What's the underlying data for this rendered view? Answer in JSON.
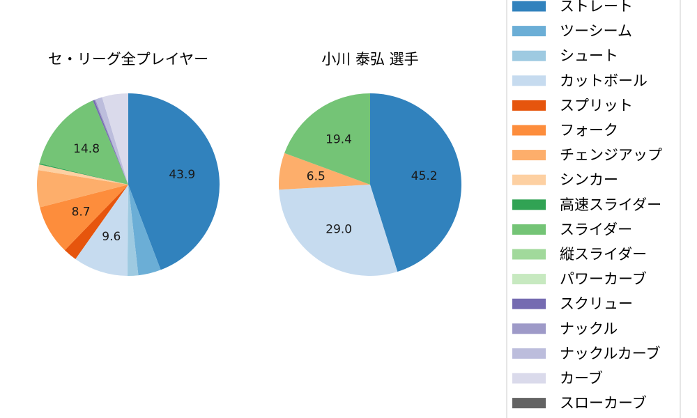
{
  "chart_data": {
    "type": "pie",
    "legend_placement": "right",
    "legend": [
      {
        "label": "ストレート",
        "color": "#3182bd"
      },
      {
        "label": "ツーシーム",
        "color": "#6baed6"
      },
      {
        "label": "シュート",
        "color": "#9ecae1"
      },
      {
        "label": "カットボール",
        "color": "#c6dbef"
      },
      {
        "label": "スプリット",
        "color": "#e6550d"
      },
      {
        "label": "フォーク",
        "color": "#fd8d3c"
      },
      {
        "label": "チェンジアップ",
        "color": "#fdae6b"
      },
      {
        "label": "シンカー",
        "color": "#fdd0a2"
      },
      {
        "label": "高速スライダー",
        "color": "#31a354"
      },
      {
        "label": "スライダー",
        "color": "#74c476"
      },
      {
        "label": "縦スライダー",
        "color": "#a1d99b"
      },
      {
        "label": "パワーカーブ",
        "color": "#c7e9c0"
      },
      {
        "label": "スクリュー",
        "color": "#756bb1"
      },
      {
        "label": "ナックル",
        "color": "#9e9ac8"
      },
      {
        "label": "ナックルカーブ",
        "color": "#bcbddc"
      },
      {
        "label": "カーブ",
        "color": "#dadaeb"
      },
      {
        "label": "スローカーブ",
        "color": "#636363"
      }
    ],
    "charts": [
      {
        "title": "セ・リーグ全プレイヤー",
        "slices": [
          {
            "label": "ストレート",
            "value": 43.9,
            "color": "#3182bd",
            "show_label": true
          },
          {
            "label": "ツーシーム",
            "value": 4.0,
            "color": "#6baed6",
            "show_label": false
          },
          {
            "label": "シュート",
            "value": 1.9,
            "color": "#9ecae1",
            "show_label": false
          },
          {
            "label": "カットボール",
            "value": 9.6,
            "color": "#c6dbef",
            "show_label": true
          },
          {
            "label": "スプリット",
            "value": 2.4,
            "color": "#e6550d",
            "show_label": false
          },
          {
            "label": "フォーク",
            "value": 8.7,
            "color": "#fd8d3c",
            "show_label": true
          },
          {
            "label": "チェンジアップ",
            "value": 6.5,
            "color": "#fdae6b",
            "show_label": false
          },
          {
            "label": "シンカー",
            "value": 1.0,
            "color": "#fdd0a2",
            "show_label": false
          },
          {
            "label": "高速スライダー",
            "value": 0.2,
            "color": "#31a354",
            "show_label": false
          },
          {
            "label": "スライダー",
            "value": 14.8,
            "color": "#74c476",
            "show_label": true
          },
          {
            "label": "スクリュー",
            "value": 0.3,
            "color": "#756bb1",
            "show_label": false
          },
          {
            "label": "ナックル",
            "value": 0.2,
            "color": "#9e9ac8",
            "show_label": false
          },
          {
            "label": "ナックルカーブ",
            "value": 1.2,
            "color": "#bcbddc",
            "show_label": false
          },
          {
            "label": "カーブ",
            "value": 4.6,
            "color": "#dadaeb",
            "show_label": false
          }
        ]
      },
      {
        "title": "小川 泰弘  選手",
        "slices": [
          {
            "label": "ストレート",
            "value": 45.2,
            "color": "#3182bd",
            "show_label": true
          },
          {
            "label": "カットボール",
            "value": 29.0,
            "color": "#c6dbef",
            "show_label": true
          },
          {
            "label": "チェンジアップ",
            "value": 6.5,
            "color": "#fdae6b",
            "show_label": true
          },
          {
            "label": "スライダー",
            "value": 19.4,
            "color": "#74c476",
            "show_label": true
          }
        ]
      }
    ]
  }
}
